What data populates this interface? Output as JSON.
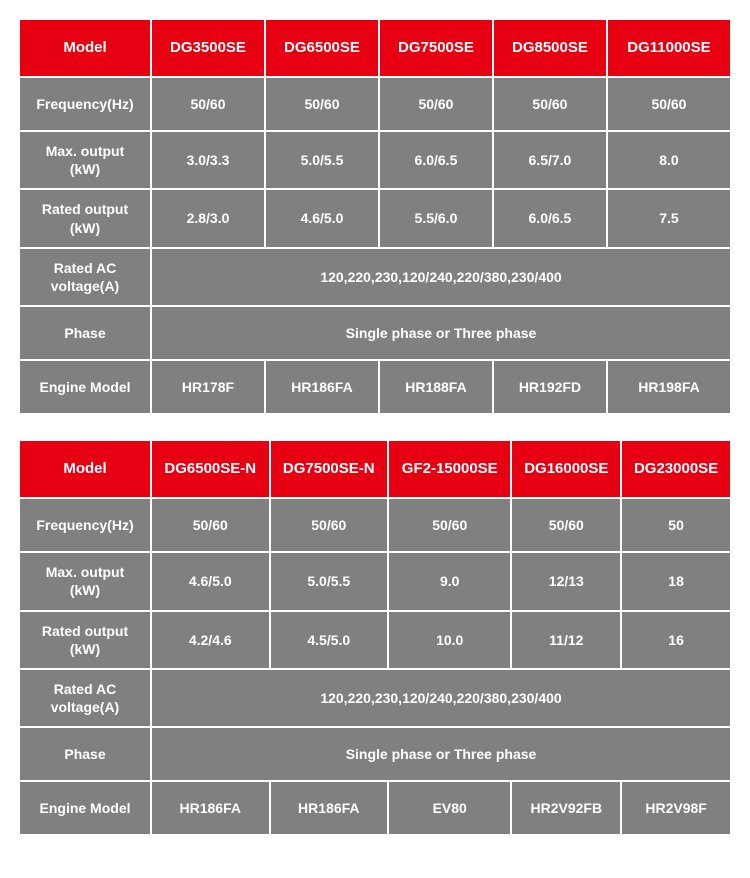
{
  "colors": {
    "header_bg": "#e60012",
    "cell_bg": "#808080",
    "text": "#ffffff",
    "page_bg": "#ffffff",
    "border_gap": "#ffffff"
  },
  "typography": {
    "font_family": "Arial",
    "header_fontsize": 15,
    "cell_fontsize": 14,
    "font_weight": "bold"
  },
  "tables": [
    {
      "label_header": "Model",
      "model_headers": [
        "DG3500SE",
        "DG6500SE",
        "DG7500SE",
        "DG8500SE",
        "DG11000SE"
      ],
      "rows": [
        {
          "label": "Frequency(Hz)",
          "cells": [
            "50/60",
            "50/60",
            "50/60",
            "50/60",
            "50/60"
          ]
        },
        {
          "label": "Max. output (kW)",
          "cells": [
            "3.0/3.3",
            "5.0/5.5",
            "6.0/6.5",
            "6.5/7.0",
            "8.0"
          ]
        },
        {
          "label": "Rated output (kW)",
          "cells": [
            "2.8/3.0",
            "4.6/5.0",
            "5.5/6.0",
            "6.0/6.5",
            "7.5"
          ]
        },
        {
          "label": "Rated AC voltage(A)",
          "span": "120,220,230,120/240,220/380,230/400"
        },
        {
          "label": "Phase",
          "span": "Single phase or Three phase"
        },
        {
          "label": "Engine Model",
          "cells": [
            "HR178F",
            "HR186FA",
            "HR188FA",
            "HR192FD",
            "HR198FA"
          ]
        }
      ]
    },
    {
      "label_header": "Model",
      "model_headers": [
        "DG6500SE-N",
        "DG7500SE-N",
        "GF2-15000SE",
        "DG16000SE",
        "DG23000SE"
      ],
      "rows": [
        {
          "label": "Frequency(Hz)",
          "cells": [
            "50/60",
            "50/60",
            "50/60",
            "50/60",
            "50"
          ]
        },
        {
          "label": "Max. output (kW)",
          "cells": [
            "4.6/5.0",
            "5.0/5.5",
            "9.0",
            "12/13",
            "18"
          ]
        },
        {
          "label": "Rated output (kW)",
          "cells": [
            "4.2/4.6",
            "4.5/5.0",
            "10.0",
            "11/12",
            "16"
          ]
        },
        {
          "label": "Rated AC voltage(A)",
          "span": "120,220,230,120/240,220/380,230/400"
        },
        {
          "label": "Phase",
          "span": "Single phase or Three phase"
        },
        {
          "label": "Engine Model",
          "cells": [
            "HR186FA",
            "HR186FA",
            "EV80",
            "HR2V92FB",
            "HR2V98F"
          ]
        }
      ]
    }
  ]
}
